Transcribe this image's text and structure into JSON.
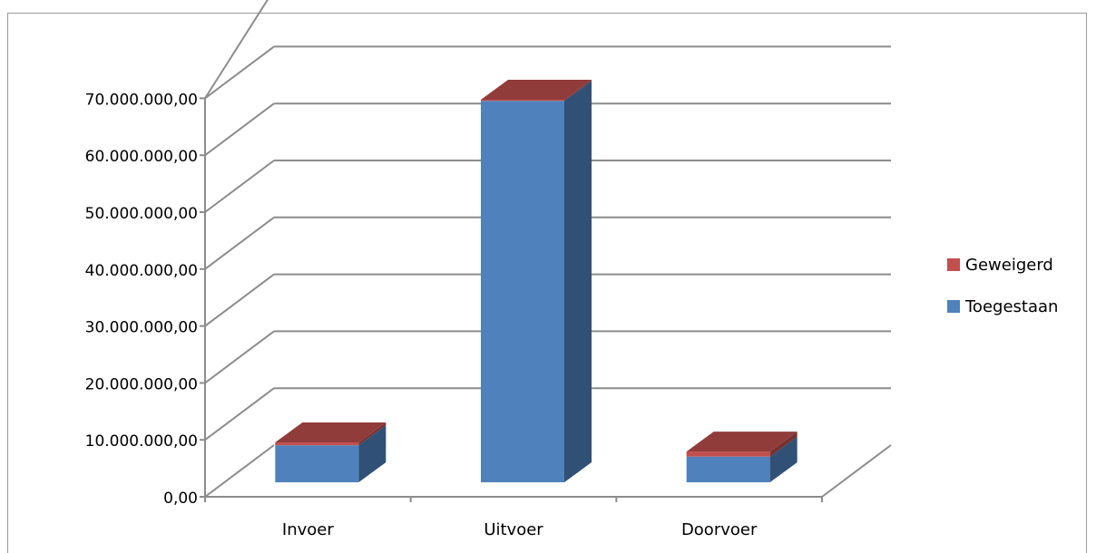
{
  "chart_data": {
    "type": "bar",
    "stacked": true,
    "three_d": true,
    "categories": [
      "Invoer",
      "Uitvoer",
      "Doorvoer"
    ],
    "series": [
      {
        "name": "Toegestaan",
        "color": "#4F81BD",
        "values": [
          6500000,
          67000000,
          4500000
        ]
      },
      {
        "name": "Geweigerd",
        "color": "#C0504D",
        "values": [
          500000,
          200000,
          900000
        ]
      }
    ],
    "y_ticks": [
      "0,00",
      "10.000.000,00",
      "20.000.000,00",
      "30.000.000,00",
      "40.000.000,00",
      "50.000.000,00",
      "60.000.000,00",
      "70.000.000,00"
    ],
    "ylim": [
      0,
      70000000
    ],
    "grid": true,
    "legend_position": "right",
    "legend_order": [
      "Geweigerd",
      "Toegestaan"
    ]
  }
}
